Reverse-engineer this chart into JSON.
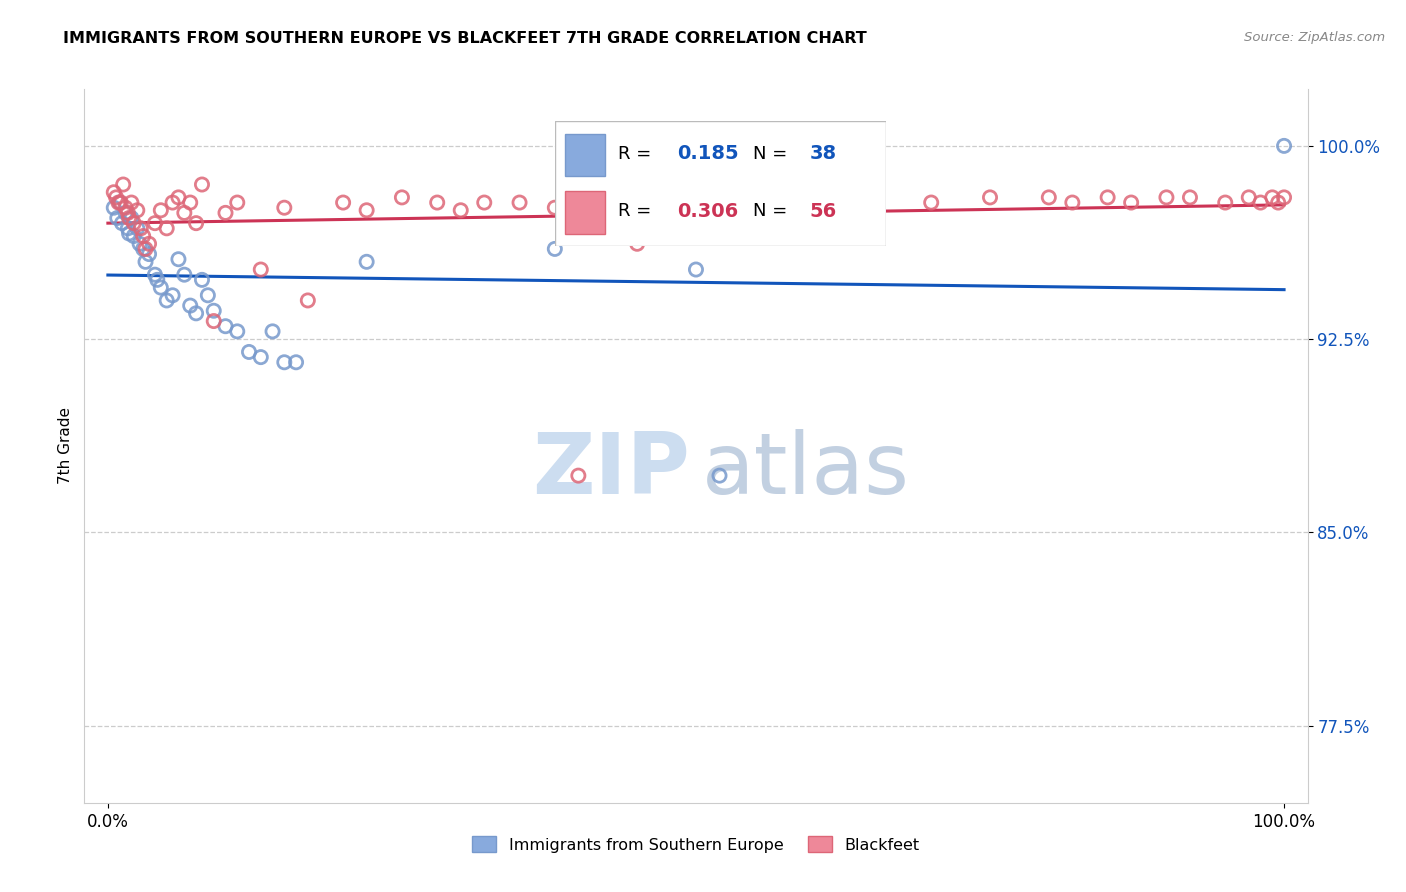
{
  "title": "IMMIGRANTS FROM SOUTHERN EUROPE VS BLACKFEET 7TH GRADE CORRELATION CHART",
  "source": "Source: ZipAtlas.com",
  "ylabel": "7th Grade",
  "xlim": [
    -0.02,
    1.02
  ],
  "ylim": [
    0.745,
    1.022
  ],
  "yticks": [
    0.775,
    0.85,
    0.925,
    1.0
  ],
  "ytick_labels": [
    "77.5%",
    "85.0%",
    "92.5%",
    "100.0%"
  ],
  "xtick_labels": [
    "0.0%",
    "100.0%"
  ],
  "xtick_positions": [
    0.0,
    1.0
  ],
  "r_blue": 0.185,
  "n_blue": 38,
  "r_pink": 0.306,
  "n_pink": 56,
  "blue_color": "#88aadd",
  "pink_color": "#ee8899",
  "blue_line_color": "#1155bb",
  "pink_line_color": "#cc3355",
  "blue_scatter_edge": "#7799cc",
  "pink_scatter_edge": "#dd6677",
  "marker_size": 90,
  "blue_points_x": [
    0.005,
    0.008,
    0.01,
    0.012,
    0.015,
    0.017,
    0.018,
    0.02,
    0.022,
    0.025,
    0.027,
    0.03,
    0.032,
    0.035,
    0.04,
    0.042,
    0.045,
    0.05,
    0.055,
    0.06,
    0.065,
    0.07,
    0.075,
    0.08,
    0.085,
    0.09,
    0.1,
    0.11,
    0.12,
    0.13,
    0.14,
    0.15,
    0.16,
    0.22,
    0.38,
    0.5,
    0.52,
    1.0
  ],
  "blue_points_y": [
    0.976,
    0.972,
    0.978,
    0.97,
    0.974,
    0.968,
    0.966,
    0.972,
    0.965,
    0.968,
    0.962,
    0.96,
    0.955,
    0.958,
    0.95,
    0.948,
    0.945,
    0.94,
    0.942,
    0.956,
    0.95,
    0.938,
    0.935,
    0.948,
    0.942,
    0.936,
    0.93,
    0.928,
    0.92,
    0.918,
    0.928,
    0.916,
    0.916,
    0.955,
    0.96,
    0.952,
    0.872,
    1.0
  ],
  "pink_points_x": [
    0.005,
    0.007,
    0.009,
    0.011,
    0.013,
    0.015,
    0.017,
    0.018,
    0.02,
    0.022,
    0.025,
    0.028,
    0.03,
    0.032,
    0.035,
    0.04,
    0.045,
    0.05,
    0.055,
    0.06,
    0.065,
    0.07,
    0.075,
    0.08,
    0.09,
    0.1,
    0.11,
    0.13,
    0.15,
    0.17,
    0.2,
    0.22,
    0.25,
    0.28,
    0.3,
    0.32,
    0.35,
    0.38,
    0.4,
    0.45,
    0.55,
    0.65,
    0.7,
    0.75,
    0.8,
    0.82,
    0.85,
    0.87,
    0.9,
    0.92,
    0.95,
    0.97,
    0.98,
    0.99,
    0.995,
    1.0
  ],
  "pink_points_y": [
    0.982,
    0.98,
    0.978,
    0.978,
    0.985,
    0.976,
    0.974,
    0.972,
    0.978,
    0.97,
    0.975,
    0.968,
    0.965,
    0.96,
    0.962,
    0.97,
    0.975,
    0.968,
    0.978,
    0.98,
    0.974,
    0.978,
    0.97,
    0.985,
    0.932,
    0.974,
    0.978,
    0.952,
    0.976,
    0.94,
    0.978,
    0.975,
    0.98,
    0.978,
    0.975,
    0.978,
    0.978,
    0.976,
    0.872,
    0.962,
    0.978,
    0.98,
    0.978,
    0.98,
    0.98,
    0.978,
    0.98,
    0.978,
    0.98,
    0.98,
    0.978,
    0.98,
    0.978,
    0.98,
    0.978,
    0.98
  ],
  "watermark_color": "#ccddf0",
  "background_color": "#ffffff",
  "grid_color": "#cccccc"
}
